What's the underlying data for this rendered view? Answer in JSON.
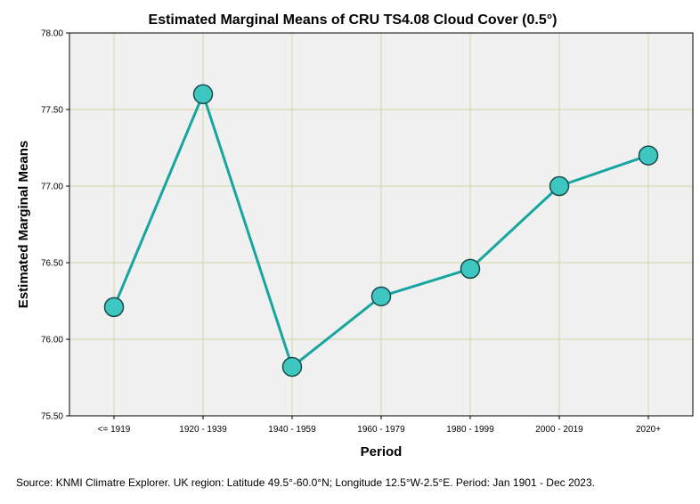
{
  "chart_data": {
    "type": "line",
    "title": "Estimated Marginal Means of CRU TS4.08 Cloud Cover (0.5°)",
    "xlabel": "Period",
    "ylabel": "Estimated Marginal Means",
    "categories": [
      "<= 1919",
      "1920 - 1939",
      "1940 - 1959",
      "1960 - 1979",
      "1980 - 1999",
      "2000 - 2019",
      "2020+"
    ],
    "values": [
      76.21,
      77.6,
      75.82,
      76.28,
      76.46,
      77.0,
      77.2
    ],
    "ylim": [
      75.5,
      78.0
    ],
    "yticks": [
      "75.50",
      "76.00",
      "76.50",
      "77.00",
      "77.50",
      "78.00"
    ],
    "grid": true,
    "colors": {
      "line": "#17a5a0",
      "marker_fill": "#3ec6c1",
      "marker_stroke": "#1a4a4a",
      "grid": "#d6d6a6",
      "plot_bg": "#f0f0f0"
    }
  },
  "source_note": "Source: KNMI Climatre Explorer. UK region: Latitude 49.5°-60.0°N; Longitude 12.5°W-2.5°E. Period: Jan 1901 - Dec 2023."
}
